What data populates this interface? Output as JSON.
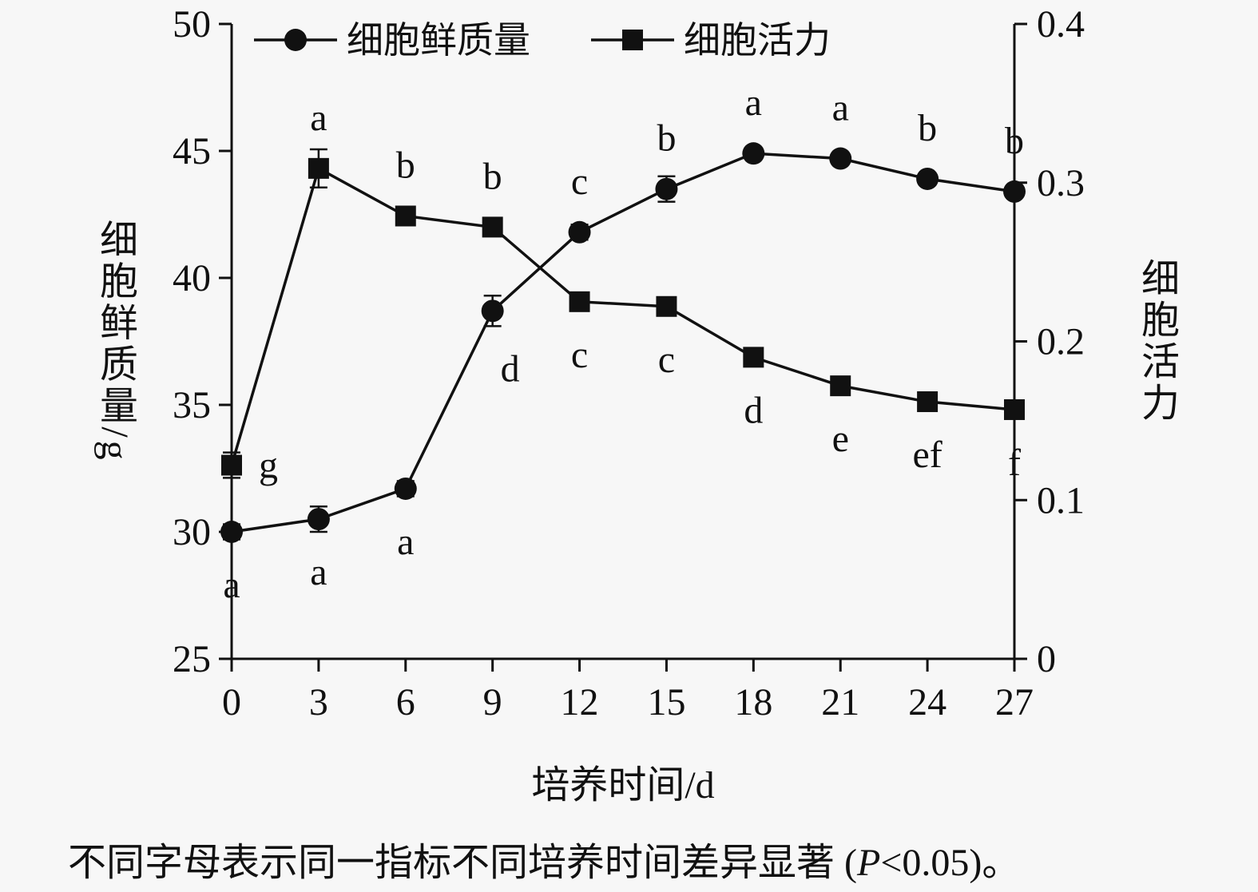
{
  "chart_data": {
    "type": "line",
    "x": [
      0,
      3,
      6,
      9,
      12,
      15,
      18,
      21,
      24,
      27
    ],
    "x_axis": {
      "label": "培养时间/d",
      "min": 0,
      "max": 27,
      "ticks": [
        0,
        3,
        6,
        9,
        12,
        15,
        18,
        21,
        24,
        27
      ]
    },
    "left_axis": {
      "label": "细胞鲜质量/g",
      "min": 25,
      "max": 50,
      "ticks": [
        25,
        30,
        35,
        40,
        45,
        50
      ]
    },
    "right_axis": {
      "label": "细胞活力",
      "min": 0,
      "max": 0.4,
      "ticks": [
        0,
        0.1,
        0.2,
        0.3,
        0.4
      ]
    },
    "legend_position": "top-inside",
    "grid": false,
    "series": [
      {
        "name": "细胞鲜质量",
        "axis": "left",
        "marker": "circle",
        "values": [
          30.0,
          30.5,
          31.7,
          38.7,
          41.8,
          43.5,
          44.9,
          44.7,
          43.9,
          43.4
        ],
        "errors": [
          0.3,
          0.5,
          0.3,
          0.6,
          0.3,
          0.5,
          0.2,
          0.2,
          0.2,
          0.2
        ],
        "labels": [
          "a",
          "a",
          "a",
          "d",
          "c",
          "b",
          "a",
          "a",
          "b",
          "b"
        ],
        "label_pos": [
          "below",
          "below",
          "below",
          "below-right",
          "above",
          "above",
          "above",
          "above",
          "above",
          "above"
        ]
      },
      {
        "name": "细胞活力",
        "axis": "right",
        "marker": "square",
        "values": [
          0.122,
          0.309,
          0.279,
          0.272,
          0.225,
          0.222,
          0.19,
          0.172,
          0.162,
          0.157
        ],
        "errors": [
          0.008,
          0.012,
          0.005,
          0.005,
          0.004,
          0.004,
          0.004,
          0.004,
          0.004,
          0.004
        ],
        "labels": [
          "g",
          "a",
          "b",
          "b",
          "c",
          "c",
          "d",
          "e",
          "ef",
          "f"
        ],
        "label_pos": [
          "right",
          "above",
          "above",
          "above",
          "below",
          "below",
          "below",
          "below",
          "below",
          "below"
        ]
      }
    ],
    "caption": {
      "pre": "不同字母表示同一指标不同培养时间差异显著 (",
      "italic": "P",
      "post": "<0.05)。"
    }
  },
  "colors": {
    "foreground": "#111111",
    "background": "#f7f7f7"
  }
}
